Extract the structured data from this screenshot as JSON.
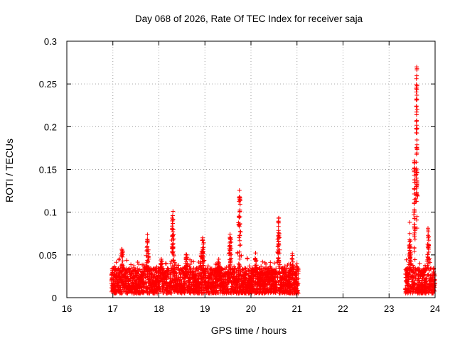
{
  "chart_data": {
    "type": "scatter",
    "title": "Day 068 of 2026, Rate Of TEC Index for receiver saja",
    "xlabel": "GPS time / hours",
    "ylabel": "ROTI / TECUs",
    "xlim": [
      16,
      24
    ],
    "ylim": [
      0,
      0.3
    ],
    "xticks": [
      16,
      17,
      18,
      19,
      20,
      21,
      22,
      23,
      24
    ],
    "yticks": [
      0,
      0.05,
      0.1,
      0.15,
      0.2,
      0.25,
      0.3
    ],
    "xtick_labels": [
      "16",
      "17",
      "18",
      "19",
      "20",
      "21",
      "22",
      "23",
      "24"
    ],
    "ytick_labels": [
      "0",
      "0.05",
      "0.1",
      "0.15",
      "0.2",
      "0.25",
      "0.3"
    ],
    "grid": true,
    "marker": "+",
    "color": "#ff0000",
    "series": [
      {
        "name": "ROTI",
        "segments": [
          {
            "x_start": 16.97,
            "x_end": 21.03,
            "baseline_min": 0.005,
            "baseline_max": 0.035
          },
          {
            "x_start": 23.35,
            "x_end": 24.0,
            "baseline_min": 0.005,
            "baseline_max": 0.035
          }
        ],
        "peaks": [
          {
            "x": 17.2,
            "y": 0.055,
            "width": 0.05
          },
          {
            "x": 17.75,
            "y": 0.068,
            "width": 0.05
          },
          {
            "x": 18.05,
            "y": 0.045,
            "width": 0.06
          },
          {
            "x": 18.3,
            "y": 0.096,
            "width": 0.04
          },
          {
            "x": 18.6,
            "y": 0.05,
            "width": 0.06
          },
          {
            "x": 18.95,
            "y": 0.07,
            "width": 0.08
          },
          {
            "x": 19.3,
            "y": 0.045,
            "width": 0.06
          },
          {
            "x": 19.55,
            "y": 0.068,
            "width": 0.06
          },
          {
            "x": 19.75,
            "y": 0.118,
            "width": 0.05
          },
          {
            "x": 20.1,
            "y": 0.045,
            "width": 0.06
          },
          {
            "x": 20.6,
            "y": 0.093,
            "width": 0.04
          },
          {
            "x": 20.9,
            "y": 0.045,
            "width": 0.05
          },
          {
            "x": 23.45,
            "y": 0.075,
            "width": 0.04
          },
          {
            "x": 23.6,
            "y": 0.27,
            "width": 0.025
          },
          {
            "x": 23.55,
            "y": 0.16,
            "width": 0.02
          },
          {
            "x": 23.85,
            "y": 0.077,
            "width": 0.04
          }
        ]
      }
    ]
  }
}
